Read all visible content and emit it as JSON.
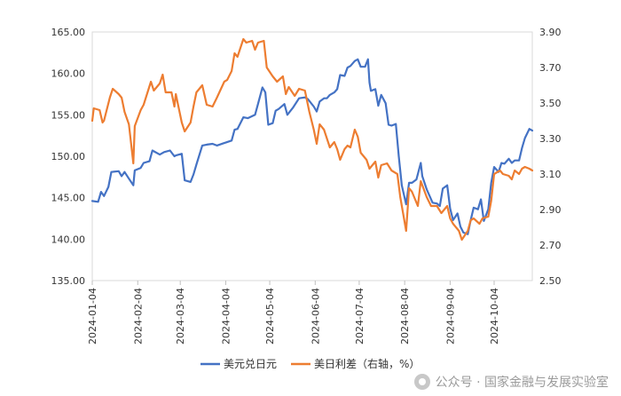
{
  "chart_data": {
    "type": "line",
    "title": "",
    "xlabel": "",
    "ylabel_left": "",
    "ylabel_right": "",
    "x_ticks": [
      "2024-01-04",
      "2024-02-04",
      "2024-03-04",
      "2024-04-04",
      "2024-05-04",
      "2024-06-04",
      "2024-07-04",
      "2024-08-04",
      "2024-09-04",
      "2024-10-04"
    ],
    "x_range": [
      "2024-01-04",
      "2024-10-30"
    ],
    "y_left": {
      "min": 135.0,
      "max": 165.0,
      "ticks": [
        "135.00",
        "140.00",
        "145.00",
        "150.00",
        "155.00",
        "160.00",
        "165.00"
      ]
    },
    "y_right": {
      "min": 2.5,
      "max": 3.9,
      "ticks": [
        "2.50",
        "2.70",
        "2.90",
        "3.10",
        "3.30",
        "3.50",
        "3.70",
        "3.90"
      ]
    },
    "grid": false,
    "legend_position": "bottom",
    "series": [
      {
        "name": "美元兑日元",
        "axis": "left",
        "color": "#4472C4",
        "points": [
          [
            "2024-01-04",
            144.6
          ],
          [
            "2024-01-08",
            144.5
          ],
          [
            "2024-01-10",
            145.7
          ],
          [
            "2024-01-12",
            145.2
          ],
          [
            "2024-01-15",
            146.3
          ],
          [
            "2024-01-17",
            148.1
          ],
          [
            "2024-01-22",
            148.2
          ],
          [
            "2024-01-24",
            147.6
          ],
          [
            "2024-01-26",
            148.1
          ],
          [
            "2024-01-29",
            147.3
          ],
          [
            "2024-02-01",
            146.5
          ],
          [
            "2024-02-02",
            148.3
          ],
          [
            "2024-02-06",
            148.6
          ],
          [
            "2024-02-08",
            149.2
          ],
          [
            "2024-02-12",
            149.4
          ],
          [
            "2024-02-14",
            150.7
          ],
          [
            "2024-02-19",
            150.2
          ],
          [
            "2024-02-22",
            150.5
          ],
          [
            "2024-02-26",
            150.7
          ],
          [
            "2024-02-29",
            150.0
          ],
          [
            "2024-03-01",
            150.1
          ],
          [
            "2024-03-05",
            150.3
          ],
          [
            "2024-03-07",
            147.1
          ],
          [
            "2024-03-11",
            146.9
          ],
          [
            "2024-03-13",
            147.8
          ],
          [
            "2024-03-15",
            149.0
          ],
          [
            "2024-03-19",
            151.3
          ],
          [
            "2024-03-22",
            151.4
          ],
          [
            "2024-03-26",
            151.5
          ],
          [
            "2024-03-29",
            151.3
          ],
          [
            "2024-04-03",
            151.6
          ],
          [
            "2024-04-08",
            151.9
          ],
          [
            "2024-04-10",
            153.2
          ],
          [
            "2024-04-12",
            153.3
          ],
          [
            "2024-04-16",
            154.7
          ],
          [
            "2024-04-19",
            154.6
          ],
          [
            "2024-04-24",
            155.0
          ],
          [
            "2024-04-26",
            156.3
          ],
          [
            "2024-04-29",
            158.3
          ],
          [
            "2024-05-01",
            157.7
          ],
          [
            "2024-05-03",
            153.8
          ],
          [
            "2024-05-06",
            154.0
          ],
          [
            "2024-05-08",
            155.5
          ],
          [
            "2024-05-10",
            155.7
          ],
          [
            "2024-05-14",
            156.3
          ],
          [
            "2024-05-16",
            155.0
          ],
          [
            "2024-05-20",
            155.9
          ],
          [
            "2024-05-24",
            157.0
          ],
          [
            "2024-05-28",
            157.1
          ],
          [
            "2024-05-30",
            156.9
          ],
          [
            "2024-06-03",
            156.0
          ],
          [
            "2024-06-05",
            155.4
          ],
          [
            "2024-06-07",
            156.6
          ],
          [
            "2024-06-10",
            157.0
          ],
          [
            "2024-06-12",
            157.0
          ],
          [
            "2024-06-14",
            157.4
          ],
          [
            "2024-06-17",
            157.7
          ],
          [
            "2024-06-19",
            158.1
          ],
          [
            "2024-06-21",
            159.8
          ],
          [
            "2024-06-24",
            159.7
          ],
          [
            "2024-06-26",
            160.7
          ],
          [
            "2024-06-28",
            160.9
          ],
          [
            "2024-07-01",
            161.5
          ],
          [
            "2024-07-03",
            161.7
          ],
          [
            "2024-07-05",
            160.8
          ],
          [
            "2024-07-08",
            160.8
          ],
          [
            "2024-07-10",
            161.7
          ],
          [
            "2024-07-11",
            158.9
          ],
          [
            "2024-07-12",
            157.9
          ],
          [
            "2024-07-15",
            158.1
          ],
          [
            "2024-07-17",
            156.1
          ],
          [
            "2024-07-19",
            157.4
          ],
          [
            "2024-07-22",
            156.4
          ],
          [
            "2024-07-24",
            153.8
          ],
          [
            "2024-07-26",
            153.7
          ],
          [
            "2024-07-29",
            153.9
          ],
          [
            "2024-07-31",
            150.0
          ],
          [
            "2024-08-02",
            146.5
          ],
          [
            "2024-08-05",
            144.2
          ],
          [
            "2024-08-07",
            146.8
          ],
          [
            "2024-08-09",
            146.8
          ],
          [
            "2024-08-12",
            147.2
          ],
          [
            "2024-08-15",
            149.2
          ],
          [
            "2024-08-16",
            147.6
          ],
          [
            "2024-08-19",
            146.0
          ],
          [
            "2024-08-21",
            145.2
          ],
          [
            "2024-08-23",
            144.4
          ],
          [
            "2024-08-26",
            144.3
          ],
          [
            "2024-08-28",
            144.0
          ],
          [
            "2024-08-30",
            146.1
          ],
          [
            "2024-09-02",
            146.5
          ],
          [
            "2024-09-04",
            143.7
          ],
          [
            "2024-09-06",
            142.3
          ],
          [
            "2024-09-09",
            143.1
          ],
          [
            "2024-09-11",
            141.5
          ],
          [
            "2024-09-13",
            140.8
          ],
          [
            "2024-09-16",
            140.6
          ],
          [
            "2024-09-18",
            142.3
          ],
          [
            "2024-09-20",
            143.8
          ],
          [
            "2024-09-23",
            143.6
          ],
          [
            "2024-09-25",
            144.8
          ],
          [
            "2024-09-27",
            142.2
          ],
          [
            "2024-09-30",
            143.6
          ],
          [
            "2024-10-02",
            146.8
          ],
          [
            "2024-10-04",
            148.7
          ],
          [
            "2024-10-07",
            148.1
          ],
          [
            "2024-10-09",
            149.2
          ],
          [
            "2024-10-11",
            149.1
          ],
          [
            "2024-10-14",
            149.7
          ],
          [
            "2024-10-16",
            149.2
          ],
          [
            "2024-10-18",
            149.5
          ],
          [
            "2024-10-21",
            149.5
          ],
          [
            "2024-10-23",
            151.0
          ],
          [
            "2024-10-25",
            152.2
          ],
          [
            "2024-10-28",
            153.3
          ],
          [
            "2024-10-30",
            153.1
          ]
        ]
      },
      {
        "name": "美日利差（右轴，%）",
        "axis": "right",
        "color": "#ED7D31",
        "points": [
          [
            "2024-01-04",
            3.4
          ],
          [
            "2024-01-05",
            3.47
          ],
          [
            "2024-01-09",
            3.46
          ],
          [
            "2024-01-11",
            3.39
          ],
          [
            "2024-01-12",
            3.4
          ],
          [
            "2024-01-16",
            3.53
          ],
          [
            "2024-01-18",
            3.58
          ],
          [
            "2024-01-22",
            3.55
          ],
          [
            "2024-01-24",
            3.53
          ],
          [
            "2024-01-26",
            3.45
          ],
          [
            "2024-01-29",
            3.38
          ],
          [
            "2024-02-01",
            3.16
          ],
          [
            "2024-02-02",
            3.37
          ],
          [
            "2024-02-06",
            3.46
          ],
          [
            "2024-02-08",
            3.49
          ],
          [
            "2024-02-13",
            3.62
          ],
          [
            "2024-02-15",
            3.57
          ],
          [
            "2024-02-19",
            3.61
          ],
          [
            "2024-02-21",
            3.66
          ],
          [
            "2024-02-23",
            3.56
          ],
          [
            "2024-02-27",
            3.56
          ],
          [
            "2024-02-29",
            3.48
          ],
          [
            "2024-03-01",
            3.55
          ],
          [
            "2024-03-05",
            3.39
          ],
          [
            "2024-03-07",
            3.34
          ],
          [
            "2024-03-11",
            3.39
          ],
          [
            "2024-03-13",
            3.48
          ],
          [
            "2024-03-15",
            3.56
          ],
          [
            "2024-03-19",
            3.6
          ],
          [
            "2024-03-22",
            3.49
          ],
          [
            "2024-03-26",
            3.48
          ],
          [
            "2024-03-29",
            3.53
          ],
          [
            "2024-04-03",
            3.62
          ],
          [
            "2024-04-05",
            3.63
          ],
          [
            "2024-04-08",
            3.68
          ],
          [
            "2024-04-10",
            3.78
          ],
          [
            "2024-04-12",
            3.76
          ],
          [
            "2024-04-16",
            3.86
          ],
          [
            "2024-04-18",
            3.84
          ],
          [
            "2024-04-22",
            3.85
          ],
          [
            "2024-04-24",
            3.8
          ],
          [
            "2024-04-26",
            3.84
          ],
          [
            "2024-04-30",
            3.85
          ],
          [
            "2024-05-02",
            3.7
          ],
          [
            "2024-05-06",
            3.65
          ],
          [
            "2024-05-09",
            3.62
          ],
          [
            "2024-05-13",
            3.65
          ],
          [
            "2024-05-15",
            3.55
          ],
          [
            "2024-05-17",
            3.59
          ],
          [
            "2024-05-21",
            3.54
          ],
          [
            "2024-05-24",
            3.58
          ],
          [
            "2024-05-28",
            3.57
          ],
          [
            "2024-05-31",
            3.45
          ],
          [
            "2024-06-03",
            3.35
          ],
          [
            "2024-06-05",
            3.27
          ],
          [
            "2024-06-07",
            3.38
          ],
          [
            "2024-06-10",
            3.35
          ],
          [
            "2024-06-12",
            3.3
          ],
          [
            "2024-06-14",
            3.25
          ],
          [
            "2024-06-17",
            3.28
          ],
          [
            "2024-06-19",
            3.24
          ],
          [
            "2024-06-21",
            3.18
          ],
          [
            "2024-06-24",
            3.24
          ],
          [
            "2024-06-26",
            3.26
          ],
          [
            "2024-06-28",
            3.25
          ],
          [
            "2024-07-01",
            3.35
          ],
          [
            "2024-07-03",
            3.31
          ],
          [
            "2024-07-05",
            3.22
          ],
          [
            "2024-07-09",
            3.18
          ],
          [
            "2024-07-11",
            3.13
          ],
          [
            "2024-07-15",
            3.17
          ],
          [
            "2024-07-17",
            3.08
          ],
          [
            "2024-07-19",
            3.15
          ],
          [
            "2024-07-23",
            3.16
          ],
          [
            "2024-07-26",
            3.12
          ],
          [
            "2024-07-30",
            3.1
          ],
          [
            "2024-08-01",
            2.97
          ],
          [
            "2024-08-05",
            2.78
          ],
          [
            "2024-08-07",
            3.02
          ],
          [
            "2024-08-09",
            3.0
          ],
          [
            "2024-08-13",
            2.92
          ],
          [
            "2024-08-15",
            3.06
          ],
          [
            "2024-08-19",
            2.97
          ],
          [
            "2024-08-22",
            2.92
          ],
          [
            "2024-08-26",
            2.92
          ],
          [
            "2024-08-29",
            2.88
          ],
          [
            "2024-09-02",
            2.92
          ],
          [
            "2024-09-04",
            2.85
          ],
          [
            "2024-09-06",
            2.82
          ],
          [
            "2024-09-10",
            2.78
          ],
          [
            "2024-09-12",
            2.73
          ],
          [
            "2024-09-16",
            2.78
          ],
          [
            "2024-09-18",
            2.84
          ],
          [
            "2024-09-20",
            2.85
          ],
          [
            "2024-09-24",
            2.82
          ],
          [
            "2024-09-26",
            2.85
          ],
          [
            "2024-09-30",
            2.86
          ],
          [
            "2024-10-02",
            2.95
          ],
          [
            "2024-10-04",
            3.1
          ],
          [
            "2024-10-08",
            3.12
          ],
          [
            "2024-10-10",
            3.1
          ],
          [
            "2024-10-14",
            3.09
          ],
          [
            "2024-10-16",
            3.07
          ],
          [
            "2024-10-18",
            3.12
          ],
          [
            "2024-10-21",
            3.1
          ],
          [
            "2024-10-23",
            3.13
          ],
          [
            "2024-10-25",
            3.14
          ],
          [
            "2024-10-28",
            3.13
          ],
          [
            "2024-10-30",
            3.12
          ]
        ]
      }
    ]
  },
  "watermark": {
    "icon": "wechat-icon",
    "text": "公众号 · 国家金融与发展实验室"
  }
}
